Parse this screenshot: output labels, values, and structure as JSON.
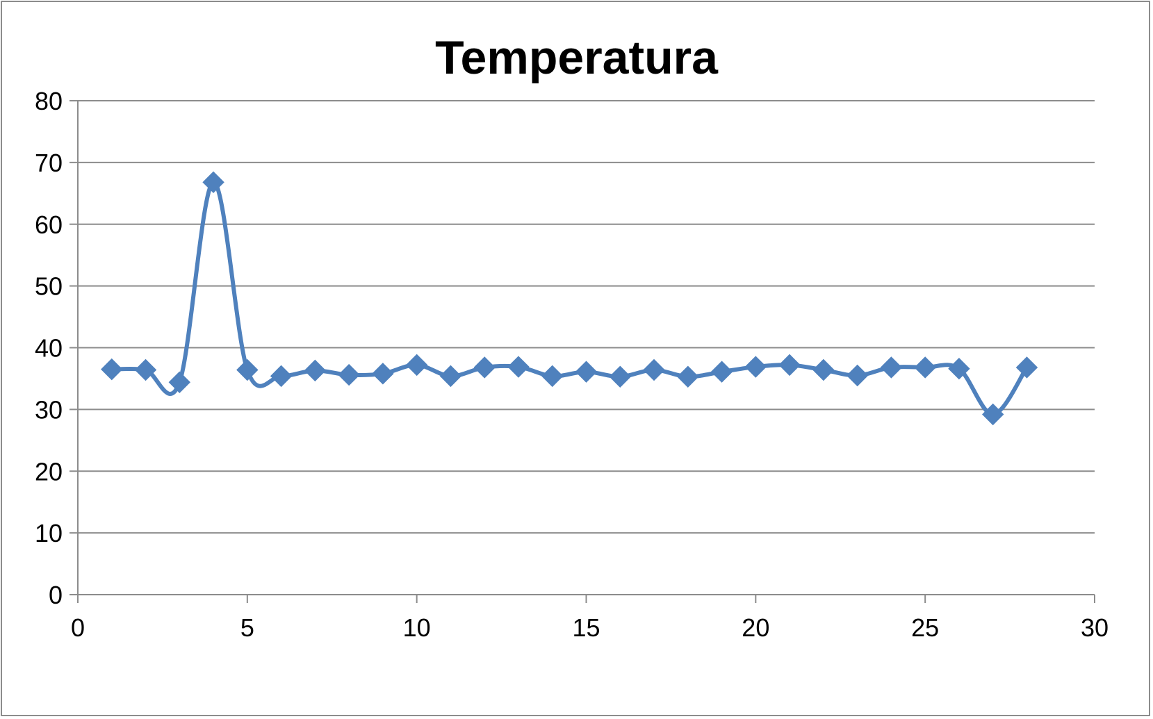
{
  "chart_data": {
    "type": "line",
    "title": "Temperatura",
    "xlabel": "",
    "ylabel": "",
    "xlim": [
      0,
      30
    ],
    "ylim": [
      0,
      80
    ],
    "x_ticks": [
      "0",
      "5",
      "10",
      "15",
      "20",
      "25",
      "30"
    ],
    "y_ticks": [
      "0",
      "10",
      "20",
      "30",
      "40",
      "50",
      "60",
      "70",
      "80"
    ],
    "grid": "horizontal",
    "legend": "none",
    "smooth": true,
    "marker": "diamond",
    "series": [
      {
        "color": "#4f81bd",
        "x": [
          1,
          2,
          3,
          4,
          5,
          6,
          7,
          8,
          9,
          10,
          11,
          12,
          13,
          14,
          15,
          16,
          17,
          18,
          19,
          20,
          21,
          22,
          23,
          24,
          25,
          26,
          27,
          28
        ],
        "y": [
          36.5,
          36.4,
          34.4,
          66.8,
          36.4,
          35.4,
          36.3,
          35.6,
          35.8,
          37.2,
          35.4,
          36.8,
          36.9,
          35.4,
          36.1,
          35.3,
          36.4,
          35.3,
          36.1,
          36.9,
          37.2,
          36.4,
          35.5,
          36.8,
          36.8,
          36.6,
          29.2,
          36.8
        ]
      }
    ]
  }
}
